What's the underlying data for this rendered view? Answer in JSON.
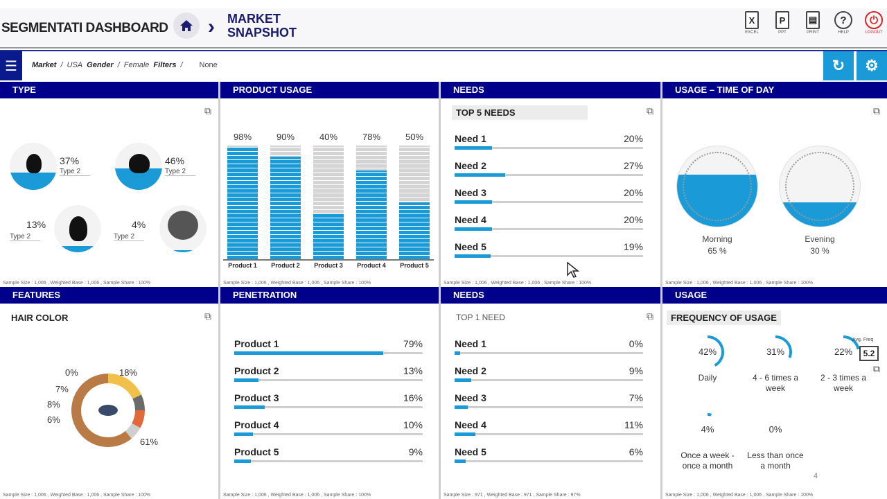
{
  "header": {
    "app_title": "SEGMENTATI DASHBOARD",
    "page_title": "MARKET SNAPSHOT",
    "tools": [
      {
        "glyph": "X",
        "label": "EXCEL"
      },
      {
        "glyph": "P",
        "label": "PPT"
      },
      {
        "glyph": "▤",
        "label": "PRINT"
      },
      {
        "glyph": "?",
        "label": "HELP"
      },
      {
        "glyph": "⏻",
        "label": "LOGOUT"
      }
    ]
  },
  "filters": {
    "market_label": "Market",
    "market_value": "USA",
    "gender_label": "Gender",
    "gender_value": "Female",
    "filters_label": "Filters",
    "filters_value": "None"
  },
  "panels": {
    "type": {
      "title": "TYPE",
      "items": [
        {
          "pct": "37%",
          "label": "Type 2",
          "fill": 0.37
        },
        {
          "pct": "46%",
          "label": "Type 2",
          "fill": 0.46
        },
        {
          "pct": "13%",
          "label": "Type 2",
          "fill": 0.13
        },
        {
          "pct": "4%",
          "label": "Type 2",
          "fill": 0.04
        }
      ],
      "footer": "Sample Size : 1,006 , Weighted Base : 1,006 , Sample Share : 100%"
    },
    "product_usage": {
      "title": "PRODUCT USAGE",
      "footer": "Sample Size : 1,006 , Weighted Base : 1,006 , Sample Share : 100%"
    },
    "needs_top5": {
      "title": "NEEDS",
      "subtitle": "TOP 5 NEEDS",
      "rows": [
        {
          "label": "Need 1",
          "value": "20%",
          "pct": 20
        },
        {
          "label": "Need 2",
          "value": "27%",
          "pct": 27
        },
        {
          "label": "Need 3",
          "value": "20%",
          "pct": 20
        },
        {
          "label": "Need 4",
          "value": "20%",
          "pct": 20
        },
        {
          "label": "Need 5",
          "value": "19%",
          "pct": 19
        }
      ],
      "footer": "Sample Size : 1,006 , Weighted Base : 1,006 , Sample Share : 100%"
    },
    "usage_time": {
      "title": "USAGE – TIME OF DAY",
      "items": [
        {
          "label": "Morning",
          "value": "65 %",
          "fill": 0.65
        },
        {
          "label": "Evening",
          "value": "30 %",
          "fill": 0.3
        }
      ],
      "footer": "Sample Size : 1,006 , Weighted Base : 1,006 , Sample Share : 100%"
    },
    "features": {
      "title": "FEATURES",
      "subtitle": "HAIR COLOR",
      "labels": [
        "0%",
        "18%",
        "7%",
        "8%",
        "6%",
        "61%"
      ],
      "footer": "Sample Size : 1,006 , Weighted Base : 1,006 , Sample Share : 100%"
    },
    "penetration": {
      "title": "PENETRATION",
      "rows": [
        {
          "label": "Product 1",
          "value": "79%",
          "pct": 79
        },
        {
          "label": "Product 2",
          "value": "13%",
          "pct": 13
        },
        {
          "label": "Product 3",
          "value": "16%",
          "pct": 16
        },
        {
          "label": "Product 4",
          "value": "10%",
          "pct": 10
        },
        {
          "label": "Product 5",
          "value": "9%",
          "pct": 9
        }
      ],
      "footer": "Sample Size : 1,006 , Weighted Base : 1,006 , Sample Share : 100%"
    },
    "needs_top1": {
      "title": "NEEDS",
      "subtitle": "TOP 1 NEED",
      "rows": [
        {
          "label": "Need 1",
          "value": "0%",
          "pct": 0
        },
        {
          "label": "Need 2",
          "value": "9%",
          "pct": 9
        },
        {
          "label": "Need 3",
          "value": "7%",
          "pct": 7
        },
        {
          "label": "Need 4",
          "value": "11%",
          "pct": 11
        },
        {
          "label": "Need 5",
          "value": "6%",
          "pct": 6
        }
      ],
      "footer": "Sample Size : 971 , Weighted Base : 971 , Sample Share : 97%"
    },
    "usage_freq": {
      "title": "USAGE",
      "subtitle": "FREQUENCY OF USAGE",
      "items": [
        {
          "pct": "42%",
          "label": "Daily",
          "value": 0.42
        },
        {
          "pct": "31%",
          "label": "4 - 6 times a week",
          "value": 0.31
        },
        {
          "pct": "22%",
          "label": "2 - 3 times a week",
          "value": 0.22
        },
        {
          "pct": "4%",
          "label": "Once a week - once a month",
          "value": 0.04
        },
        {
          "pct": "0%",
          "label": "Less than once a month",
          "value": 0.0
        }
      ],
      "avg_label": "Avg. Freq",
      "avg_value": "5.2",
      "footer": "Sample Size : 1,006 , Weighted Base : 1,006 , Sample Share : 100%"
    }
  },
  "chart_data": [
    {
      "type": "bar",
      "title": "PRODUCT USAGE",
      "categories": [
        "Product 1",
        "Product 2",
        "Product 3",
        "Product 4",
        "Product 5"
      ],
      "values": [
        98,
        90,
        40,
        78,
        50
      ],
      "labels": [
        "98%",
        "90%",
        "40%",
        "78%",
        "50%"
      ],
      "ylim": [
        0,
        100
      ]
    },
    {
      "type": "pie",
      "title": "HAIR COLOR",
      "values": [
        0,
        18,
        7,
        8,
        6,
        61
      ],
      "colors": [
        "#bfbfbf",
        "#f0c04a",
        "#6b6b6b",
        "#e06a3a",
        "#cfcfcf",
        "#b97a45"
      ]
    }
  ],
  "colors": {
    "accent": "#1a9ad6",
    "header": "#00008b"
  },
  "page_number": "4"
}
